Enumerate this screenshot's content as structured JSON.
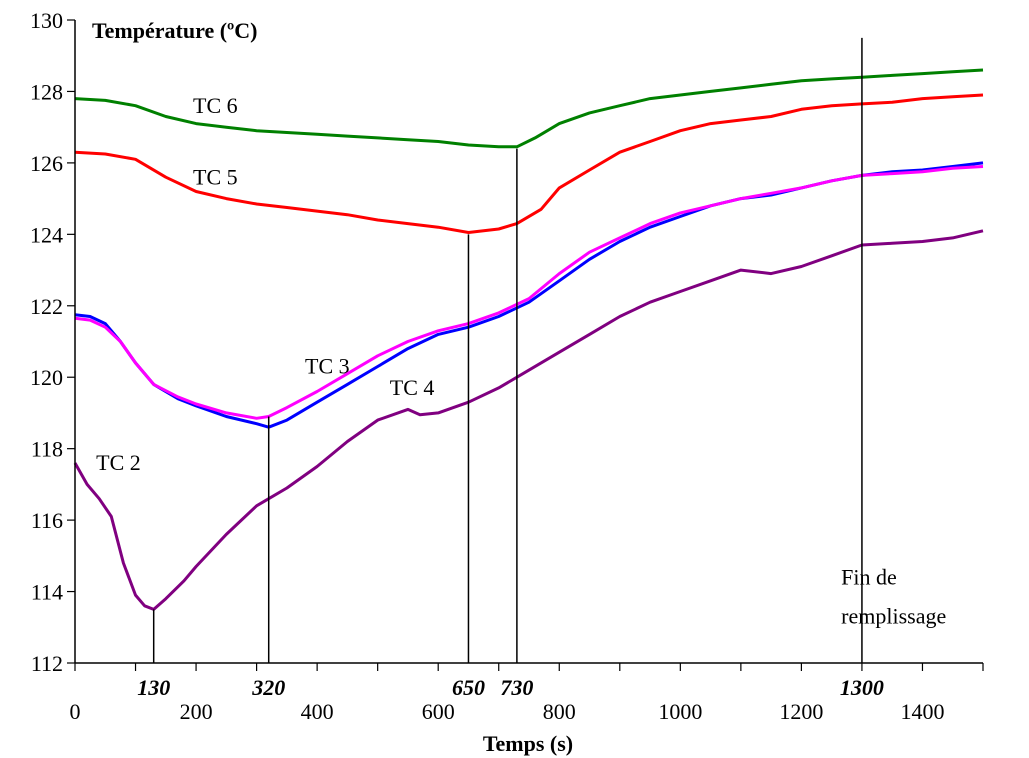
{
  "chart_data": {
    "type": "line",
    "ylabel": "Température (ºC)",
    "xlabel": "Temps (s)",
    "xlim": [
      0,
      1500
    ],
    "ylim": [
      112,
      130
    ],
    "xticks": [
      0,
      200,
      400,
      600,
      800,
      1000,
      1200,
      1400
    ],
    "yticks": [
      112,
      114,
      116,
      118,
      120,
      122,
      124,
      126,
      128,
      130
    ],
    "grid": false,
    "legend": "none",
    "markers": [
      {
        "x": 130,
        "label": "130",
        "y_top": 113.5
      },
      {
        "x": 320,
        "label": "320",
        "y_top": 118.9
      },
      {
        "x": 650,
        "label": "650",
        "y_top": 124.0
      },
      {
        "x": 730,
        "label": "730",
        "y_top": 126.4
      },
      {
        "x": 1300,
        "label": "1300",
        "y_top": 129.5
      }
    ],
    "annotations": [
      {
        "text": "Fin de",
        "x": 1340,
        "y": 114.2
      },
      {
        "text": "remplissage",
        "x": 1340,
        "y": 113.1
      }
    ],
    "series": [
      {
        "name": "TC 6",
        "color": "#008000",
        "label_pos": [
          195,
          127.4
        ],
        "x": [
          0,
          50,
          100,
          150,
          200,
          250,
          300,
          350,
          400,
          450,
          500,
          550,
          600,
          650,
          700,
          730,
          760,
          800,
          850,
          900,
          950,
          1000,
          1050,
          1100,
          1150,
          1200,
          1250,
          1300,
          1350,
          1400,
          1450,
          1500
        ],
        "values": [
          127.8,
          127.75,
          127.6,
          127.3,
          127.1,
          127.0,
          126.9,
          126.85,
          126.8,
          126.75,
          126.7,
          126.65,
          126.6,
          126.5,
          126.45,
          126.45,
          126.7,
          127.1,
          127.4,
          127.6,
          127.8,
          127.9,
          128.0,
          128.1,
          128.2,
          128.3,
          128.35,
          128.4,
          128.45,
          128.5,
          128.55,
          128.6
        ]
      },
      {
        "name": "TC 5",
        "color": "#ff0000",
        "label_pos": [
          195,
          125.4
        ],
        "x": [
          0,
          50,
          100,
          150,
          200,
          250,
          300,
          350,
          400,
          450,
          500,
          550,
          600,
          650,
          700,
          730,
          770,
          800,
          850,
          900,
          950,
          1000,
          1050,
          1100,
          1150,
          1200,
          1250,
          1300,
          1350,
          1400,
          1450,
          1500
        ],
        "values": [
          126.3,
          126.25,
          126.1,
          125.6,
          125.2,
          125.0,
          124.85,
          124.75,
          124.65,
          124.55,
          124.4,
          124.3,
          124.2,
          124.05,
          124.15,
          124.3,
          124.7,
          125.3,
          125.8,
          126.3,
          126.6,
          126.9,
          127.1,
          127.2,
          127.3,
          127.5,
          127.6,
          127.65,
          127.7,
          127.8,
          127.85,
          127.9
        ]
      },
      {
        "name": "TC 3",
        "color": "#0000ff",
        "label_pos": [
          380,
          120.1
        ],
        "x": [
          0,
          25,
          50,
          75,
          100,
          130,
          170,
          200,
          250,
          300,
          320,
          350,
          400,
          450,
          500,
          550,
          600,
          650,
          700,
          750,
          800,
          850,
          900,
          950,
          1000,
          1050,
          1100,
          1150,
          1200,
          1250,
          1300,
          1350,
          1400,
          1450,
          1500
        ],
        "values": [
          121.75,
          121.7,
          121.5,
          121.0,
          120.4,
          119.8,
          119.4,
          119.2,
          118.9,
          118.7,
          118.6,
          118.8,
          119.3,
          119.8,
          120.3,
          120.8,
          121.2,
          121.4,
          121.7,
          122.1,
          122.7,
          123.3,
          123.8,
          124.2,
          124.5,
          124.8,
          125.0,
          125.1,
          125.3,
          125.5,
          125.65,
          125.75,
          125.8,
          125.9,
          126.0
        ]
      },
      {
        "name": "TC 4",
        "color": "#ff00ff",
        "label_pos": [
          520,
          119.5
        ],
        "x": [
          0,
          25,
          50,
          75,
          100,
          130,
          170,
          200,
          250,
          300,
          320,
          350,
          400,
          450,
          500,
          550,
          600,
          650,
          700,
          750,
          800,
          850,
          900,
          950,
          1000,
          1050,
          1100,
          1150,
          1200,
          1250,
          1300,
          1350,
          1400,
          1450,
          1500
        ],
        "values": [
          121.65,
          121.6,
          121.4,
          121.0,
          120.4,
          119.8,
          119.45,
          119.25,
          119.0,
          118.85,
          118.9,
          119.15,
          119.6,
          120.1,
          120.6,
          121.0,
          121.3,
          121.5,
          121.8,
          122.2,
          122.9,
          123.5,
          123.9,
          124.3,
          124.6,
          124.8,
          125.0,
          125.15,
          125.3,
          125.5,
          125.65,
          125.7,
          125.75,
          125.85,
          125.9
        ]
      },
      {
        "name": "TC 2",
        "color": "#800080",
        "label_pos": [
          35,
          117.4
        ],
        "x": [
          0,
          20,
          40,
          60,
          80,
          100,
          115,
          130,
          150,
          180,
          200,
          250,
          300,
          320,
          350,
          400,
          450,
          500,
          550,
          570,
          600,
          650,
          700,
          750,
          800,
          850,
          900,
          950,
          1000,
          1050,
          1100,
          1150,
          1200,
          1250,
          1300,
          1350,
          1400,
          1450,
          1500
        ],
        "values": [
          117.6,
          117.0,
          116.6,
          116.1,
          114.8,
          113.9,
          113.6,
          113.5,
          113.8,
          114.3,
          114.7,
          115.6,
          116.4,
          116.6,
          116.9,
          117.5,
          118.2,
          118.8,
          119.1,
          118.95,
          119.0,
          119.3,
          119.7,
          120.2,
          120.7,
          121.2,
          121.7,
          122.1,
          122.4,
          122.7,
          123.0,
          122.9,
          123.1,
          123.4,
          123.7,
          123.75,
          123.8,
          123.9,
          124.1
        ]
      }
    ]
  }
}
